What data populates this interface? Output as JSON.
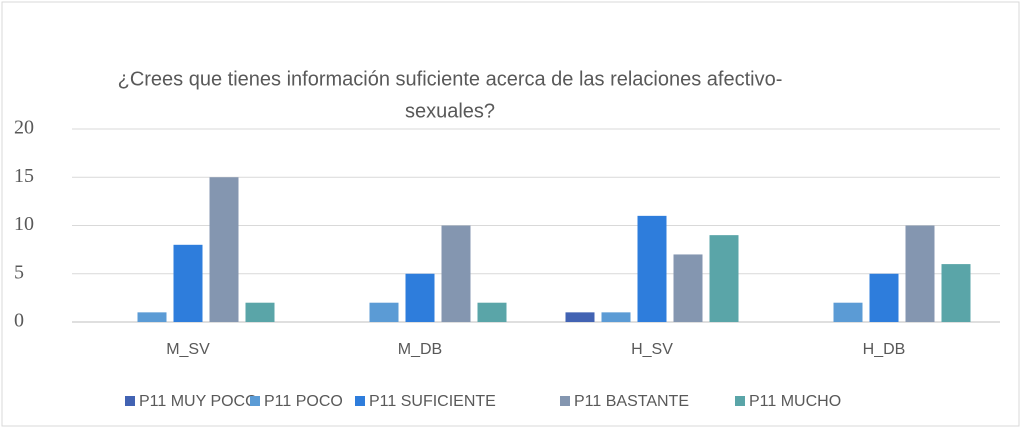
{
  "chart_data": {
    "type": "bar",
    "title_lines": [
      "¿Crees que tienes información suficiente acerca de las relaciones afectivo-",
      "sexuales?"
    ],
    "categories": [
      "M_SV",
      "M_DB",
      "H_SV",
      "H_DB"
    ],
    "series": [
      {
        "name": "P11 MUY POCO",
        "color": "#4263b3",
        "values": [
          0,
          0,
          1,
          0
        ]
      },
      {
        "name": "P11 POCO",
        "color": "#5b9bd5",
        "values": [
          1,
          2,
          1,
          2
        ]
      },
      {
        "name": "P11 SUFICIENTE",
        "color": "#2e7ddc",
        "values": [
          8,
          5,
          11,
          5
        ]
      },
      {
        "name": "P11 BASTANTE",
        "color": "#8496b0",
        "values": [
          15,
          10,
          7,
          10
        ]
      },
      {
        "name": "P11 MUCHO",
        "color": "#5aa5a8",
        "values": [
          2,
          2,
          9,
          6
        ]
      }
    ],
    "ylim": [
      0,
      20
    ],
    "yticks": [
      0,
      5,
      10,
      15,
      20
    ],
    "grid": true,
    "legend": "bottom"
  }
}
